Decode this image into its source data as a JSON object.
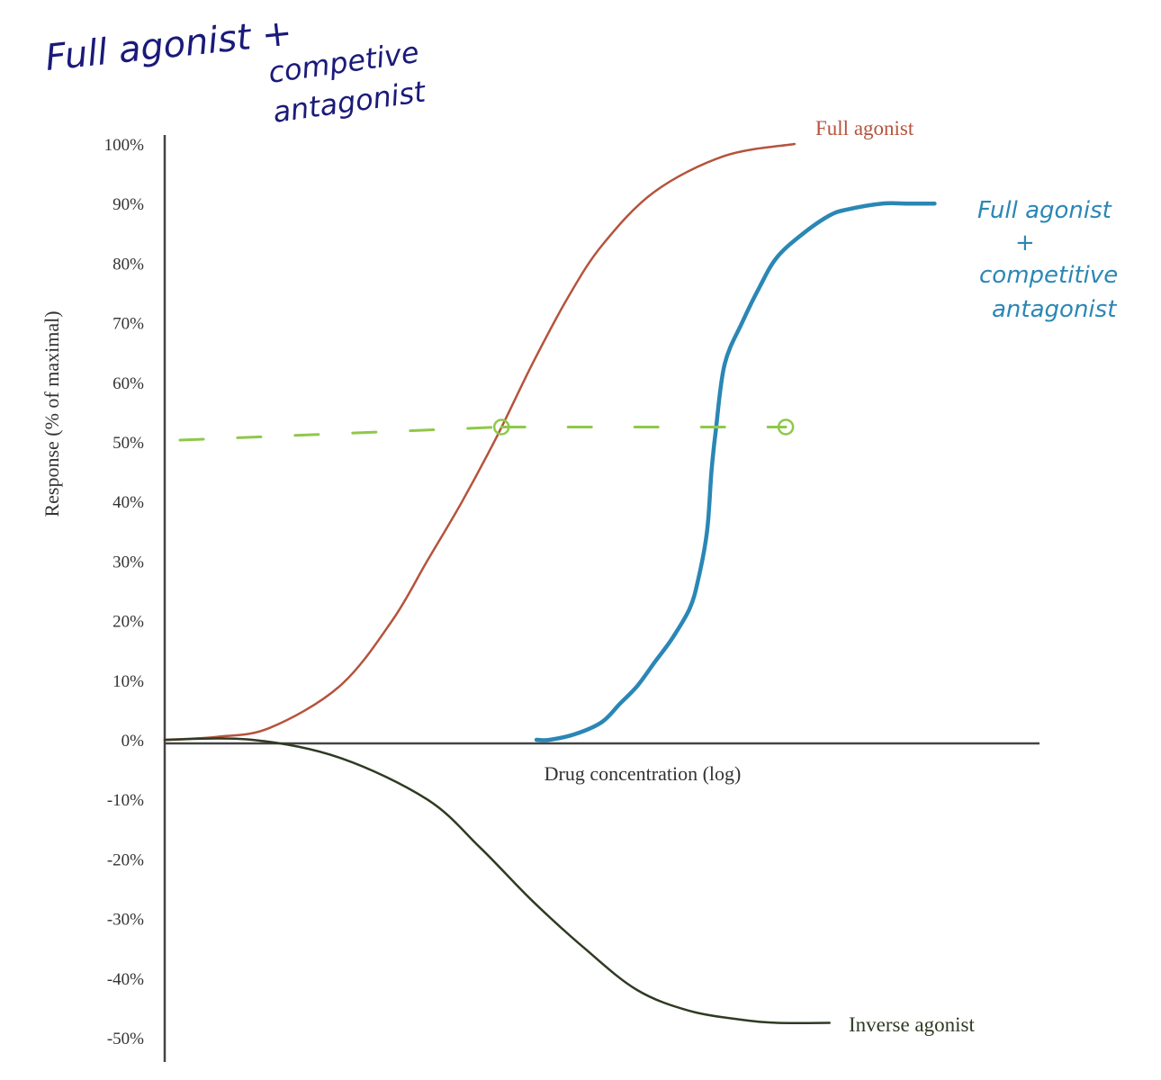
{
  "chart_data": {
    "type": "line",
    "title": "",
    "xlabel": "Drug concentration (log)",
    "ylabel": "Response (% of maximal)",
    "x_scale": "log",
    "xlim": [
      0,
      100
    ],
    "ylim": [
      -50,
      100
    ],
    "y_ticks": [
      100,
      90,
      80,
      70,
      60,
      50,
      40,
      30,
      20,
      10,
      0,
      -10,
      -20,
      -30,
      -40,
      -50
    ],
    "y_tick_labels": [
      "100%",
      "90%",
      "80%",
      "70%",
      "60%",
      "50%",
      "40%",
      "30%",
      "20%",
      "10%",
      "0%",
      "-10%",
      "-20%",
      "-30%",
      "-40%",
      "-50%"
    ],
    "grid": false,
    "series": [
      {
        "name": "Full agonist",
        "color": "#b5533c",
        "x": [
          0,
          6,
          12,
          20,
          26,
          30,
          34,
          38,
          42,
          46,
          50,
          56,
          64,
          72
        ],
        "y": [
          0,
          0.5,
          2,
          9,
          20,
          30,
          40,
          51,
          63,
          74,
          83,
          92,
          98,
          100
        ]
      },
      {
        "name": "Full agonist + competitive antagonist",
        "color": "#2a87b5",
        "x": [
          42.5,
          44,
          47,
          50,
          52,
          54,
          56,
          58,
          60,
          61,
          62,
          62.5,
          63,
          64,
          66,
          68,
          70,
          73,
          76,
          78,
          82,
          85,
          88
        ],
        "y": [
          0,
          0,
          1,
          3,
          6,
          9,
          13,
          17,
          22,
          27,
          35,
          45,
          52,
          63,
          70,
          76,
          81,
          85,
          88,
          89,
          90,
          90,
          90
        ]
      },
      {
        "name": "Inverse agonist",
        "color": "#2f3a22",
        "x": [
          0,
          10,
          20,
          30,
          36,
          42,
          48,
          54,
          60,
          66,
          70,
          76
        ],
        "y": [
          0,
          0,
          -3,
          -10,
          -18,
          -27,
          -35,
          -42,
          -45.5,
          -47,
          -47.5,
          -47.5
        ]
      }
    ],
    "reference_line": {
      "type": "dashed",
      "color": "#8fc84a",
      "y": 50,
      "markers_y": 52.5,
      "markers_x": [
        38.5,
        71
      ]
    },
    "annotations": {
      "handwritten_title": [
        "Full agonist +",
        "competive",
        "antagonist"
      ],
      "handwritten_blue_label": [
        "Full agonist",
        "+",
        "competitive",
        "antagonist"
      ]
    }
  }
}
